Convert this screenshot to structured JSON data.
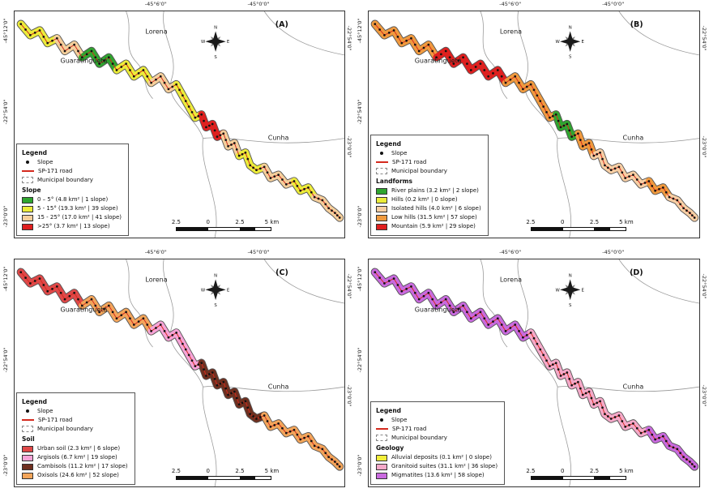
{
  "figure": {
    "places": [
      "Lorena",
      "Guaratinguetá",
      "Cunha"
    ],
    "coords": {
      "lon0": "-45°12'0\"",
      "lon1": "-45°6'0\"",
      "lon2": "-45°0'0\"",
      "lat1": "-22°54'0\"",
      "lat2": "-23°0'0\""
    },
    "compass": {
      "n": "N",
      "e": "E",
      "s": "S",
      "w": "W"
    },
    "legend_common": {
      "title": "Legend",
      "slope": "Slope",
      "road": "SP-171 road",
      "boundary": "Municipal boundary"
    },
    "scale": {
      "t1": "2.5",
      "t2": "0",
      "t3": "2.5",
      "t4": "5 km"
    },
    "road_color": "#d42a1e",
    "dot_color": "#111111",
    "boundary_color": "#999999",
    "panels": [
      {
        "letter": "(A)",
        "section_title": "Slope",
        "classes": [
          {
            "label": "0 – 5° (4.8 km² | 1 slope)",
            "color": "#2fa52f"
          },
          {
            "label": "5 - 15° (19.3 km² | 39 slope)",
            "color": "#ecec3a"
          },
          {
            "label": "15 - 25° (17.0 km² | 41 slope)",
            "color": "#f5cf9b"
          },
          {
            "label": ">25° (3.7 km² | 13 slope)",
            "color": "#e01f1f"
          }
        ],
        "road_colors": [
          "#ecec3a",
          "#f5cf9b",
          "#2fa52f",
          "#ecec3a",
          "#f5cf9b",
          "#ecec3a",
          "#e01f1f",
          "#f5cf9b",
          "#ecec3a",
          "#f5cf9b",
          "#ecec3a",
          "#f5cf9b"
        ]
      },
      {
        "letter": "(B)",
        "section_title": "Landforms",
        "classes": [
          {
            "label": "River plains (3.2 km² | 2 slope)",
            "color": "#2fa52f"
          },
          {
            "label": "Hills (0.2 km² | 0 slope)",
            "color": "#ecec3a"
          },
          {
            "label": "Isolated hills (4.0 km² | 6 slope)",
            "color": "#f8cfa4"
          },
          {
            "label": "Low hills (31.5 km² | 57 slope)",
            "color": "#f09a3e"
          },
          {
            "label": "Mountain (5.9 km² | 29 slope)",
            "color": "#e01f1f"
          }
        ],
        "road_colors": [
          "#f09a3e",
          "#f09a3e",
          "#e01f1f",
          "#e01f1f",
          "#f09a3e",
          "#f09a3e",
          "#2fa52f",
          "#f09a3e",
          "#f8cfa4",
          "#f8cfa4",
          "#f09a3e",
          "#f8cfa4"
        ]
      },
      {
        "letter": "(C)",
        "section_title": "Soil",
        "classes": [
          {
            "label": "Urban soil (2.3 km² | 6 slope)",
            "color": "#e04848"
          },
          {
            "label": "Argisols (6.7 km² | 19 slope)",
            "color": "#f6a3d7"
          },
          {
            "label": "Cambisols (11.2 km² | 17 slope)",
            "color": "#6f2f1f"
          },
          {
            "label": "Oxisols (24.6 km² | 52 slope)",
            "color": "#f3a55a"
          }
        ],
        "road_colors": [
          "#e04848",
          "#e04848",
          "#f3a55a",
          "#f3a55a",
          "#f6a3d7",
          "#f6a3d7",
          "#6f2f1f",
          "#6f2f1f",
          "#6f2f1f",
          "#f3a55a",
          "#f3a55a",
          "#f3a55a"
        ]
      },
      {
        "letter": "(D)",
        "section_title": "Geology",
        "classes": [
          {
            "label": "Alluvial deposits (0.1 km² | 0 slope)",
            "color": "#f2ee3a"
          },
          {
            "label": "Granitoid suites (31.1 km² | 36 slope)",
            "color": "#f5a9c9"
          },
          {
            "label": "Migmatites (13.6 km² | 58 slope)",
            "color": "#c96adf"
          }
        ],
        "road_colors": [
          "#c96adf",
          "#c96adf",
          "#c96adf",
          "#c96adf",
          "#c96adf",
          "#f5a9c9",
          "#f5a9c9",
          "#f5a9c9",
          "#f5a9c9",
          "#f5a9c9",
          "#c96adf",
          "#c96adf"
        ]
      }
    ]
  }
}
